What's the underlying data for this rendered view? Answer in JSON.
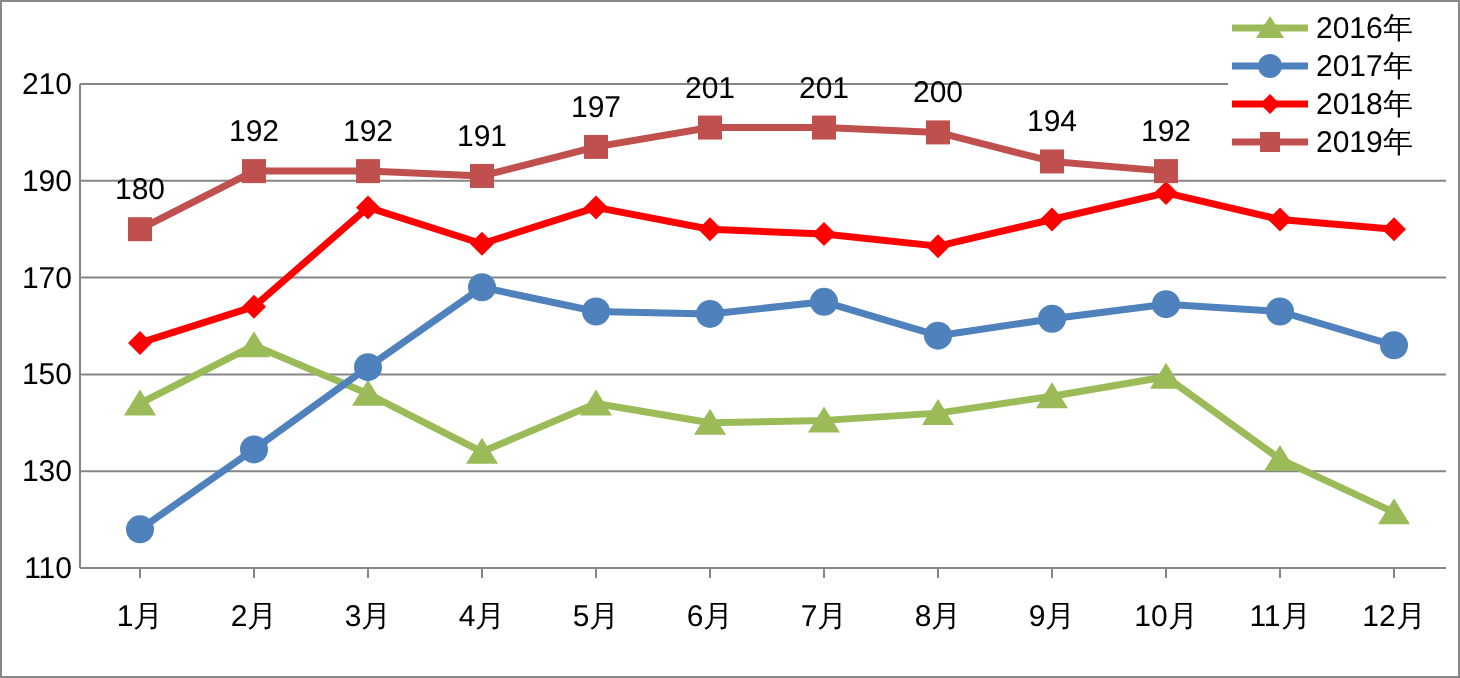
{
  "chart_data": {
    "type": "line",
    "categories": [
      "1月",
      "2月",
      "3月",
      "4月",
      "5月",
      "6月",
      "7月",
      "8月",
      "9月",
      "10月",
      "11月",
      "12月"
    ],
    "series": [
      {
        "name": "2016年",
        "color": "#9bbb59",
        "marker": "triangle",
        "values": [
          144,
          156,
          146,
          134,
          144,
          140,
          140.5,
          142,
          145.5,
          149.5,
          132.5,
          121.5
        ]
      },
      {
        "name": "2017年",
        "color": "#4f81bd",
        "marker": "circle",
        "values": [
          118,
          134.5,
          151.5,
          168,
          163,
          162.5,
          165,
          158,
          161.5,
          164.5,
          163,
          156
        ]
      },
      {
        "name": "2018年",
        "color": "#ff0000",
        "marker": "diamond",
        "values": [
          156.5,
          164,
          184.5,
          177,
          184.5,
          180,
          179,
          176.5,
          182,
          187.5,
          182,
          180
        ]
      },
      {
        "name": "2019年",
        "color": "#c0504d",
        "marker": "square",
        "values": [
          180,
          192,
          192,
          191,
          197,
          201,
          201,
          200,
          194,
          192,
          null,
          null
        ],
        "value_labels": [
          "180",
          "192",
          "192",
          "191",
          "197",
          "201",
          "201",
          "200",
          "194",
          "192",
          null,
          null
        ]
      }
    ],
    "ylim": [
      110,
      210
    ],
    "yticks": [
      110,
      130,
      150,
      170,
      190,
      210
    ],
    "grid": "y",
    "legend": "top right"
  }
}
